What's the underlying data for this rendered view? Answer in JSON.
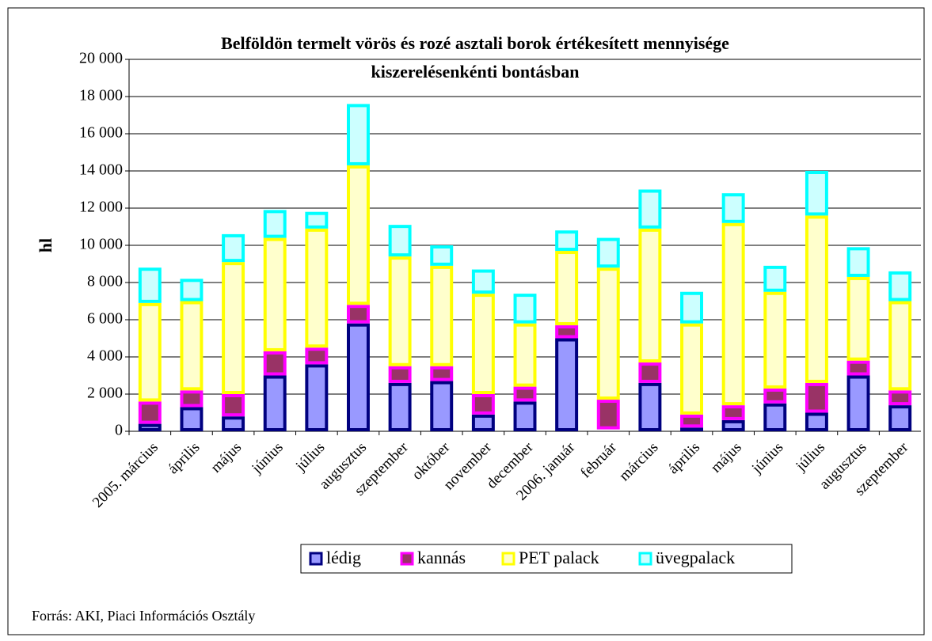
{
  "chart_data": {
    "type": "stacked_bar",
    "title": [
      "Belföldön termelt vörös és rozé asztali borok értékesített mennyisége",
      "kiszerelésenkénti bontásban"
    ],
    "y_label": "hl",
    "source": "Forrás: AKI, Piaci Információs Osztály",
    "categories": [
      "2005. március",
      "április",
      "május",
      "június",
      "július",
      "augusztus",
      "szeptember",
      "október",
      "november",
      "december",
      "2006. január",
      "február",
      "március",
      "április",
      "május",
      "június",
      "július",
      "augusztus",
      "szeptember"
    ],
    "series": [
      {
        "name": "lédig",
        "color": "#9999ff",
        "border": "#000080",
        "values": [
          400,
          1300,
          800,
          3000,
          3600,
          5800,
          2600,
          2700,
          900,
          1600,
          5000,
          100,
          2600,
          200,
          600,
          1500,
          1000,
          3000,
          1400
        ]
      },
      {
        "name": "kannás",
        "color": "#993366",
        "border": "#ff00ff",
        "values": [
          1200,
          900,
          1200,
          1300,
          900,
          1000,
          900,
          800,
          1100,
          800,
          700,
          1600,
          1100,
          700,
          800,
          800,
          1600,
          800,
          800
        ]
      },
      {
        "name": "PET palack",
        "color": "#ffffcc",
        "border": "#ffff00",
        "values": [
          5300,
          4800,
          7100,
          6100,
          6400,
          7500,
          5900,
          5400,
          5400,
          3400,
          4000,
          7100,
          7200,
          4900,
          9800,
          5200,
          9000,
          4500,
          4800
        ]
      },
      {
        "name": "üvegpalack",
        "color": "#ccffff",
        "border": "#00ffff",
        "values": [
          1900,
          1200,
          1500,
          1500,
          900,
          3300,
          1700,
          1100,
          1300,
          1600,
          1100,
          1600,
          2100,
          1700,
          1600,
          1400,
          2400,
          1600,
          1600
        ]
      }
    ],
    "ylim": [
      0,
      20000
    ],
    "yticks": [
      0,
      {
        "value": 2000,
        "label": "2 000"
      },
      {
        "value": 4000,
        "label": "4 000"
      },
      {
        "value": 6000,
        "label": "6 000"
      },
      {
        "value": 8000,
        "label": "8 000"
      },
      {
        "value": 10000,
        "label": "10 000"
      },
      {
        "value": 12000,
        "label": "12 000"
      },
      {
        "value": 14000,
        "label": "14 000"
      },
      {
        "value": 16000,
        "label": "16 000"
      },
      {
        "value": 18000,
        "label": "18 000"
      },
      {
        "value": 20000,
        "label": "20 000"
      }
    ],
    "grid": true,
    "legend": "bottom"
  }
}
